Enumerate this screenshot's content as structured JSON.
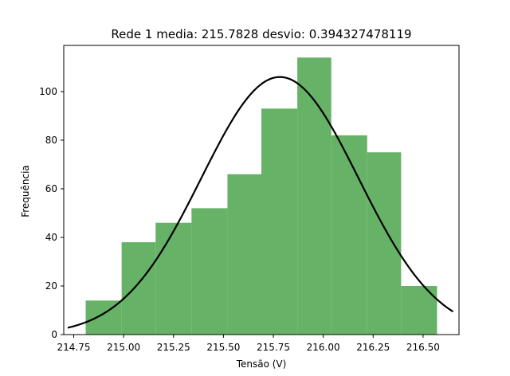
{
  "chart_data": {
    "type": "bar",
    "title": "Rede 1 media: 215.7828 desvio: 0.394327478119",
    "xlabel": "Tensão (V)",
    "ylabel": "Frequência",
    "xlim": [
      214.7,
      216.68
    ],
    "ylim": [
      0,
      119
    ],
    "grid": false,
    "bar_color": "#66b266",
    "curve_color": "#000000",
    "x_ticks": [
      214.75,
      215.0,
      215.25,
      215.5,
      215.75,
      216.0,
      216.25,
      216.5
    ],
    "x_tick_labels": [
      "214.75",
      "215.00",
      "215.25",
      "215.50",
      "215.75",
      "216.00",
      "216.25",
      "216.50"
    ],
    "y_ticks": [
      0,
      20,
      40,
      60,
      80,
      100
    ],
    "y_tick_labels": [
      "0",
      "20",
      "40",
      "60",
      "80",
      "100"
    ],
    "histogram": {
      "bin_edges": [
        214.81,
        214.9,
        214.99,
        215.07,
        215.16,
        215.25,
        215.34,
        215.43,
        215.52,
        215.61,
        215.69,
        215.78,
        215.87,
        215.96,
        216.04,
        216.13,
        216.22,
        216.31,
        216.39,
        216.48,
        216.57
      ],
      "bins": [
        {
          "x0": 214.81,
          "x1": 214.99,
          "count": 14
        },
        {
          "x0": 214.99,
          "x1": 215.16,
          "count": 38
        },
        {
          "x0": 215.16,
          "x1": 215.34,
          "count": 46
        },
        {
          "x0": 215.34,
          "x1": 215.52,
          "count": 52
        },
        {
          "x0": 215.52,
          "x1": 215.69,
          "count": 66
        },
        {
          "x0": 215.69,
          "x1": 215.87,
          "count": 93
        },
        {
          "x0": 215.87,
          "x1": 216.04,
          "count": 114
        },
        {
          "x0": 216.04,
          "x1": 216.22,
          "count": 82
        },
        {
          "x0": 216.22,
          "x1": 216.39,
          "count": 75
        },
        {
          "x0": 216.39,
          "x1": 216.57,
          "count": 20
        }
      ]
    },
    "curve": {
      "type": "normal",
      "mean": 215.7828,
      "std": 0.394327478119,
      "peak": 106,
      "x_range": [
        214.72,
        216.65
      ]
    }
  }
}
